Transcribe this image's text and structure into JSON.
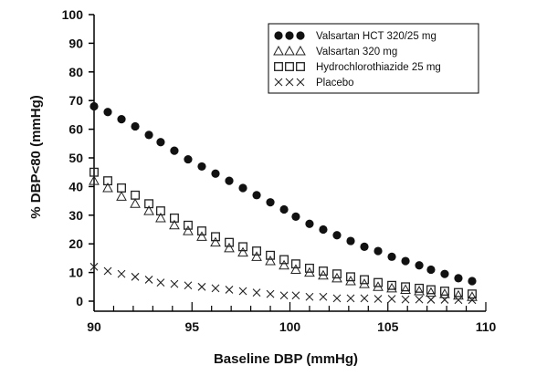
{
  "chart_data": {
    "type": "scatter",
    "title": "",
    "xlabel": "Baseline DBP (mmHg)",
    "ylabel": "% DBP<80 (mmHg)",
    "xlim": [
      90,
      110
    ],
    "ylim": [
      0,
      100
    ],
    "xticks": [
      90,
      95,
      100,
      105,
      110
    ],
    "yticks": [
      0,
      10,
      20,
      30,
      40,
      50,
      60,
      70,
      80,
      90,
      100
    ],
    "legend_position": "top-right",
    "grid": false,
    "x": [
      90,
      90.7,
      91.4,
      92.1,
      92.8,
      93.4,
      94.1,
      94.8,
      95.5,
      96.2,
      96.9,
      97.6,
      98.3,
      99.0,
      99.7,
      100.3,
      101.0,
      101.7,
      102.4,
      103.1,
      103.8,
      104.5,
      105.2,
      105.9,
      106.6,
      107.2,
      107.9,
      108.6,
      109.3
    ],
    "series": [
      {
        "name": "Valsartan HCT 320/25 mg",
        "marker": "filled-circle",
        "values": [
          68.0,
          66.0,
          63.5,
          61.0,
          58.0,
          55.5,
          52.5,
          49.5,
          47.0,
          44.5,
          42.0,
          39.5,
          37.0,
          34.5,
          32.0,
          29.5,
          27.0,
          25.0,
          23.0,
          21.0,
          19.0,
          17.5,
          15.5,
          14.0,
          12.5,
          11.0,
          9.5,
          8.0,
          7.0
        ]
      },
      {
        "name": "Valsartan 320 mg",
        "marker": "open-triangle",
        "values": [
          42.0,
          39.5,
          36.5,
          34.0,
          31.5,
          29.0,
          26.5,
          24.5,
          22.5,
          20.5,
          18.5,
          17.0,
          15.5,
          14.0,
          12.5,
          11.0,
          10.0,
          9.0,
          8.0,
          7.0,
          6.0,
          5.0,
          4.5,
          4.0,
          3.5,
          3.0,
          2.5,
          2.0,
          1.5
        ]
      },
      {
        "name": "Hydrochlorothiazide 25 mg",
        "marker": "open-square",
        "values": [
          45.0,
          42.0,
          39.5,
          37.0,
          34.0,
          31.5,
          29.0,
          26.5,
          24.5,
          22.5,
          20.5,
          19.0,
          17.5,
          16.0,
          14.5,
          13.0,
          11.5,
          10.5,
          9.5,
          8.5,
          7.5,
          6.5,
          5.5,
          5.0,
          4.5,
          4.0,
          3.5,
          3.0,
          2.5
        ]
      },
      {
        "name": "Placebo",
        "marker": "x",
        "values": [
          12.0,
          10.5,
          9.5,
          8.5,
          7.5,
          6.5,
          6.0,
          5.5,
          5.0,
          4.5,
          4.0,
          3.5,
          3.0,
          2.5,
          2.0,
          2.0,
          1.5,
          1.5,
          1.0,
          1.0,
          1.0,
          0.8,
          0.8,
          0.6,
          0.6,
          0.5,
          0.5,
          0.4,
          0.4
        ]
      }
    ]
  }
}
